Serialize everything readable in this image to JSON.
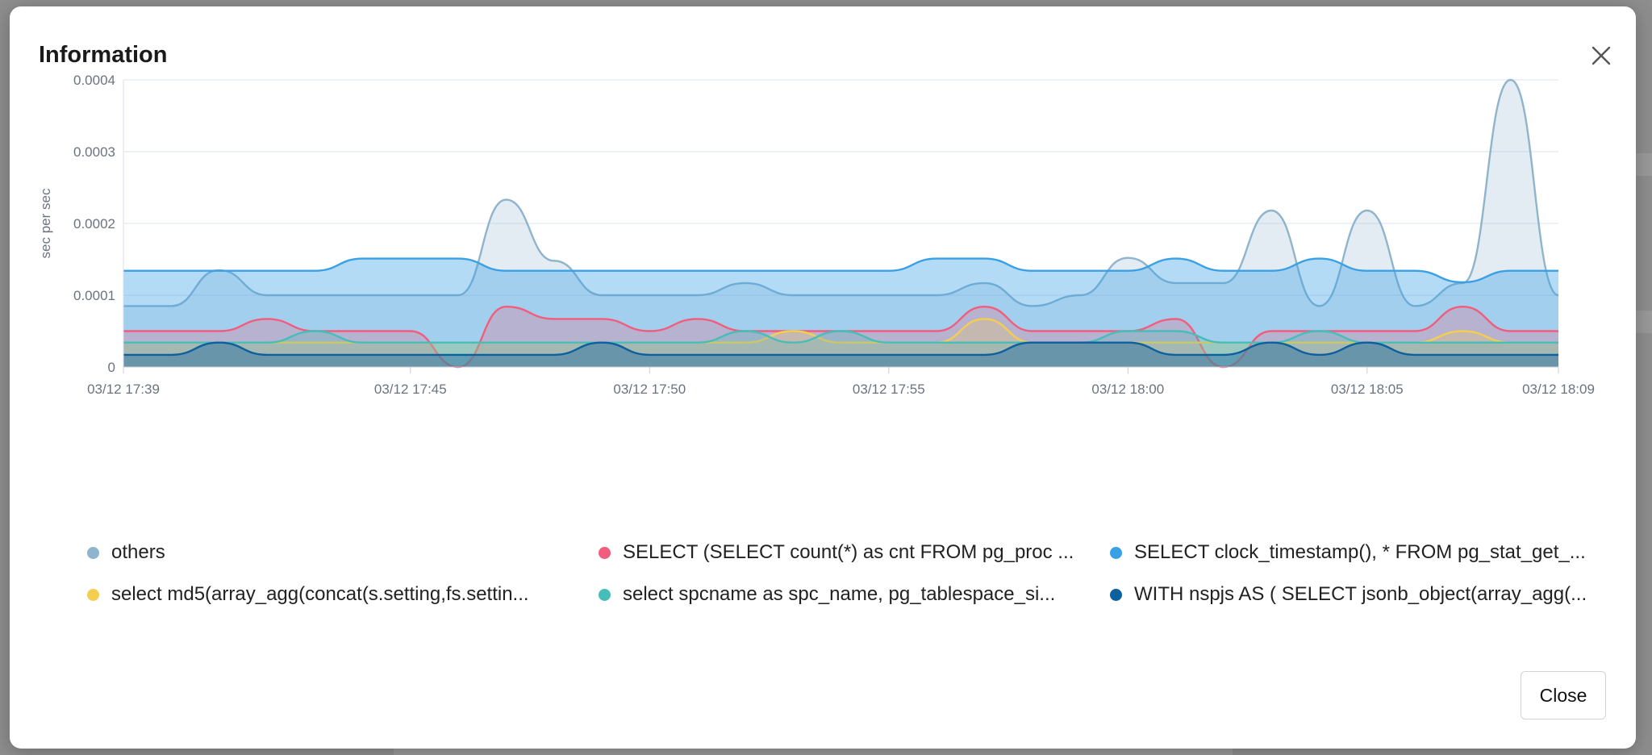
{
  "dialog": {
    "title": "Information",
    "close_icon": "close-icon",
    "close_button_label": "Close"
  },
  "colors": {
    "others": "#8fb4cc",
    "pink": "#f25c7d",
    "blue": "#3aa0e6",
    "yellow": "#f5cd4f",
    "teal": "#47bdb9",
    "navy": "#0e5f9e"
  },
  "chart_data": {
    "type": "area",
    "ylabel": "sec per sec",
    "ylim": [
      0,
      0.0004
    ],
    "y_ticks": [
      {
        "value": 0,
        "label": "0"
      },
      {
        "value": 0.0001,
        "label": "0.0001"
      },
      {
        "value": 0.0002,
        "label": "0.0002"
      },
      {
        "value": 0.0003,
        "label": "0.0003"
      },
      {
        "value": 0.0004,
        "label": "0.0004"
      }
    ],
    "xlim": [
      "03/12 17:39",
      "03/12 18:09"
    ],
    "x_ticks": [
      {
        "t": 0,
        "label": "03/12 17:39"
      },
      {
        "t": 6,
        "label": "03/12 17:45"
      },
      {
        "t": 11,
        "label": "03/12 17:50"
      },
      {
        "t": 16,
        "label": "03/12 17:55"
      },
      {
        "t": 21,
        "label": "03/12 18:00"
      },
      {
        "t": 26,
        "label": "03/12 18:05"
      },
      {
        "t": 30,
        "label": "03/12 18:09"
      }
    ],
    "x_unit": "minutes after 03/12 17:39",
    "series": [
      {
        "name": "others",
        "color": "#8fb4cc",
        "fill_opacity": 0.25,
        "points": [
          [
            0,
            8.5e-05
          ],
          [
            1,
            8.5e-05
          ],
          [
            2,
            0.000135
          ],
          [
            3,
            0.0001
          ],
          [
            4,
            0.0001
          ],
          [
            5,
            0.0001
          ],
          [
            6,
            0.0001
          ],
          [
            7,
            0.0001
          ],
          [
            8,
            0.000233
          ],
          [
            9,
            0.000148
          ],
          [
            10,
            0.0001
          ],
          [
            11,
            0.0001
          ],
          [
            12,
            0.0001
          ],
          [
            13,
            0.000117
          ],
          [
            14,
            0.0001
          ],
          [
            15,
            0.0001
          ],
          [
            16,
            0.0001
          ],
          [
            17,
            0.0001
          ],
          [
            18,
            0.000117
          ],
          [
            19,
            8.5e-05
          ],
          [
            20,
            0.0001
          ],
          [
            21,
            0.000152
          ],
          [
            22,
            0.000117
          ],
          [
            23,
            0.000117
          ],
          [
            24,
            0.000218
          ],
          [
            25,
            8.5e-05
          ],
          [
            26,
            0.000218
          ],
          [
            27,
            8.5e-05
          ],
          [
            28,
            0.000117
          ],
          [
            29,
            0.00042
          ],
          [
            30,
            0.0001
          ]
        ]
      },
      {
        "name": "SELECT clock_timestamp(), * FROM pg_stat_get_...",
        "color": "#3aa0e6",
        "fill_opacity": 0.38,
        "points": [
          [
            0,
            0.000134
          ],
          [
            1,
            0.000134
          ],
          [
            2,
            0.000134
          ],
          [
            3,
            0.000134
          ],
          [
            4,
            0.000134
          ],
          [
            5,
            0.000151
          ],
          [
            6,
            0.000151
          ],
          [
            7,
            0.000151
          ],
          [
            8,
            0.000134
          ],
          [
            9,
            0.000134
          ],
          [
            10,
            0.000134
          ],
          [
            11,
            0.000134
          ],
          [
            12,
            0.000134
          ],
          [
            13,
            0.000134
          ],
          [
            14,
            0.000134
          ],
          [
            15,
            0.000134
          ],
          [
            16,
            0.000134
          ],
          [
            17,
            0.000151
          ],
          [
            18,
            0.000151
          ],
          [
            19,
            0.000134
          ],
          [
            20,
            0.000134
          ],
          [
            21,
            0.000134
          ],
          [
            22,
            0.000151
          ],
          [
            23,
            0.000134
          ],
          [
            24,
            0.000134
          ],
          [
            25,
            0.000151
          ],
          [
            26,
            0.000134
          ],
          [
            27,
            0.000134
          ],
          [
            28,
            0.000118
          ],
          [
            29,
            0.000134
          ],
          [
            30,
            0.000134
          ]
        ]
      },
      {
        "name": "SELECT (SELECT count(*) as cnt FROM pg_proc ...",
        "color": "#f25c7d",
        "fill_opacity": 0.25,
        "points": [
          [
            0,
            5e-05
          ],
          [
            1,
            5e-05
          ],
          [
            2,
            5e-05
          ],
          [
            3,
            6.7e-05
          ],
          [
            4,
            5e-05
          ],
          [
            5,
            5e-05
          ],
          [
            6,
            5e-05
          ],
          [
            7,
            0.0
          ],
          [
            8,
            8.4e-05
          ],
          [
            9,
            6.7e-05
          ],
          [
            10,
            6.7e-05
          ],
          [
            11,
            5e-05
          ],
          [
            12,
            6.7e-05
          ],
          [
            13,
            5e-05
          ],
          [
            14,
            5e-05
          ],
          [
            15,
            5e-05
          ],
          [
            16,
            5e-05
          ],
          [
            17,
            5e-05
          ],
          [
            18,
            8.4e-05
          ],
          [
            19,
            5e-05
          ],
          [
            20,
            5e-05
          ],
          [
            21,
            5e-05
          ],
          [
            22,
            6.7e-05
          ],
          [
            23,
            0.0
          ],
          [
            24,
            5e-05
          ],
          [
            25,
            5e-05
          ],
          [
            26,
            5e-05
          ],
          [
            27,
            5e-05
          ],
          [
            28,
            8.4e-05
          ],
          [
            29,
            5e-05
          ],
          [
            30,
            5e-05
          ]
        ]
      },
      {
        "name": "select md5(array_agg(concat(s.setting,fs.settin...",
        "color": "#f5cd4f",
        "fill_opacity": 0.25,
        "points": [
          [
            0,
            3.4e-05
          ],
          [
            1,
            3.4e-05
          ],
          [
            2,
            3.4e-05
          ],
          [
            3,
            3.4e-05
          ],
          [
            4,
            3.4e-05
          ],
          [
            5,
            3.4e-05
          ],
          [
            6,
            3.4e-05
          ],
          [
            7,
            3.4e-05
          ],
          [
            8,
            3.4e-05
          ],
          [
            9,
            3.4e-05
          ],
          [
            10,
            3.4e-05
          ],
          [
            11,
            3.4e-05
          ],
          [
            12,
            3.4e-05
          ],
          [
            13,
            3.4e-05
          ],
          [
            14,
            5e-05
          ],
          [
            15,
            3.4e-05
          ],
          [
            16,
            3.4e-05
          ],
          [
            17,
            3.4e-05
          ],
          [
            18,
            6.7e-05
          ],
          [
            19,
            3.4e-05
          ],
          [
            20,
            3.4e-05
          ],
          [
            21,
            3.4e-05
          ],
          [
            22,
            3.4e-05
          ],
          [
            23,
            3.4e-05
          ],
          [
            24,
            3.4e-05
          ],
          [
            25,
            3.4e-05
          ],
          [
            26,
            3.4e-05
          ],
          [
            27,
            3.4e-05
          ],
          [
            28,
            5e-05
          ],
          [
            29,
            3.4e-05
          ],
          [
            30,
            3.4e-05
          ]
        ]
      },
      {
        "name": "select spcname as spc_name, pg_tablespace_si...",
        "color": "#47bdb9",
        "fill_opacity": 0.25,
        "points": [
          [
            0,
            3.4e-05
          ],
          [
            1,
            3.4e-05
          ],
          [
            2,
            3.4e-05
          ],
          [
            3,
            3.4e-05
          ],
          [
            4,
            5e-05
          ],
          [
            5,
            3.4e-05
          ],
          [
            6,
            3.4e-05
          ],
          [
            7,
            3.4e-05
          ],
          [
            8,
            3.4e-05
          ],
          [
            9,
            3.4e-05
          ],
          [
            10,
            3.4e-05
          ],
          [
            11,
            3.4e-05
          ],
          [
            12,
            3.4e-05
          ],
          [
            13,
            5e-05
          ],
          [
            14,
            3.4e-05
          ],
          [
            15,
            5e-05
          ],
          [
            16,
            3.4e-05
          ],
          [
            17,
            3.4e-05
          ],
          [
            18,
            3.4e-05
          ],
          [
            19,
            3.4e-05
          ],
          [
            20,
            3.4e-05
          ],
          [
            21,
            5e-05
          ],
          [
            22,
            5e-05
          ],
          [
            23,
            3.4e-05
          ],
          [
            24,
            3.4e-05
          ],
          [
            25,
            5e-05
          ],
          [
            26,
            3.4e-05
          ],
          [
            27,
            3.4e-05
          ],
          [
            28,
            3.4e-05
          ],
          [
            29,
            3.4e-05
          ],
          [
            30,
            3.4e-05
          ]
        ]
      },
      {
        "name": "WITH nspjs AS ( SELECT jsonb_object(array_agg(...",
        "color": "#0e5f9e",
        "fill_opacity": 0.4,
        "points": [
          [
            0,
            1.7e-05
          ],
          [
            1,
            1.7e-05
          ],
          [
            2,
            3.4e-05
          ],
          [
            3,
            1.7e-05
          ],
          [
            4,
            1.7e-05
          ],
          [
            5,
            1.7e-05
          ],
          [
            6,
            1.7e-05
          ],
          [
            7,
            1.7e-05
          ],
          [
            8,
            1.7e-05
          ],
          [
            9,
            1.7e-05
          ],
          [
            10,
            3.4e-05
          ],
          [
            11,
            1.7e-05
          ],
          [
            12,
            1.7e-05
          ],
          [
            13,
            1.7e-05
          ],
          [
            14,
            1.7e-05
          ],
          [
            15,
            1.7e-05
          ],
          [
            16,
            1.7e-05
          ],
          [
            17,
            1.7e-05
          ],
          [
            18,
            1.7e-05
          ],
          [
            19,
            3.4e-05
          ],
          [
            20,
            3.4e-05
          ],
          [
            21,
            3.4e-05
          ],
          [
            22,
            1.7e-05
          ],
          [
            23,
            1.7e-05
          ],
          [
            24,
            3.4e-05
          ],
          [
            25,
            1.7e-05
          ],
          [
            26,
            3.4e-05
          ],
          [
            27,
            1.7e-05
          ],
          [
            28,
            1.7e-05
          ],
          [
            29,
            1.7e-05
          ],
          [
            30,
            1.7e-05
          ]
        ]
      }
    ],
    "legend": [
      {
        "label": "others",
        "color": "#8fb4cc"
      },
      {
        "label": "SELECT (SELECT count(*) as cnt FROM pg_proc ...",
        "color": "#f25c7d"
      },
      {
        "label": "SELECT clock_timestamp(), * FROM pg_stat_get_...",
        "color": "#3aa0e6"
      },
      {
        "label": "select md5(array_agg(concat(s.setting,fs.settin...",
        "color": "#f5cd4f"
      },
      {
        "label": "select spcname as spc_name, pg_tablespace_si...",
        "color": "#47bdb9"
      },
      {
        "label": "WITH nspjs AS ( SELECT jsonb_object(array_agg(...",
        "color": "#0e5f9e"
      }
    ],
    "legend_placement": "bottom",
    "grid": true
  }
}
